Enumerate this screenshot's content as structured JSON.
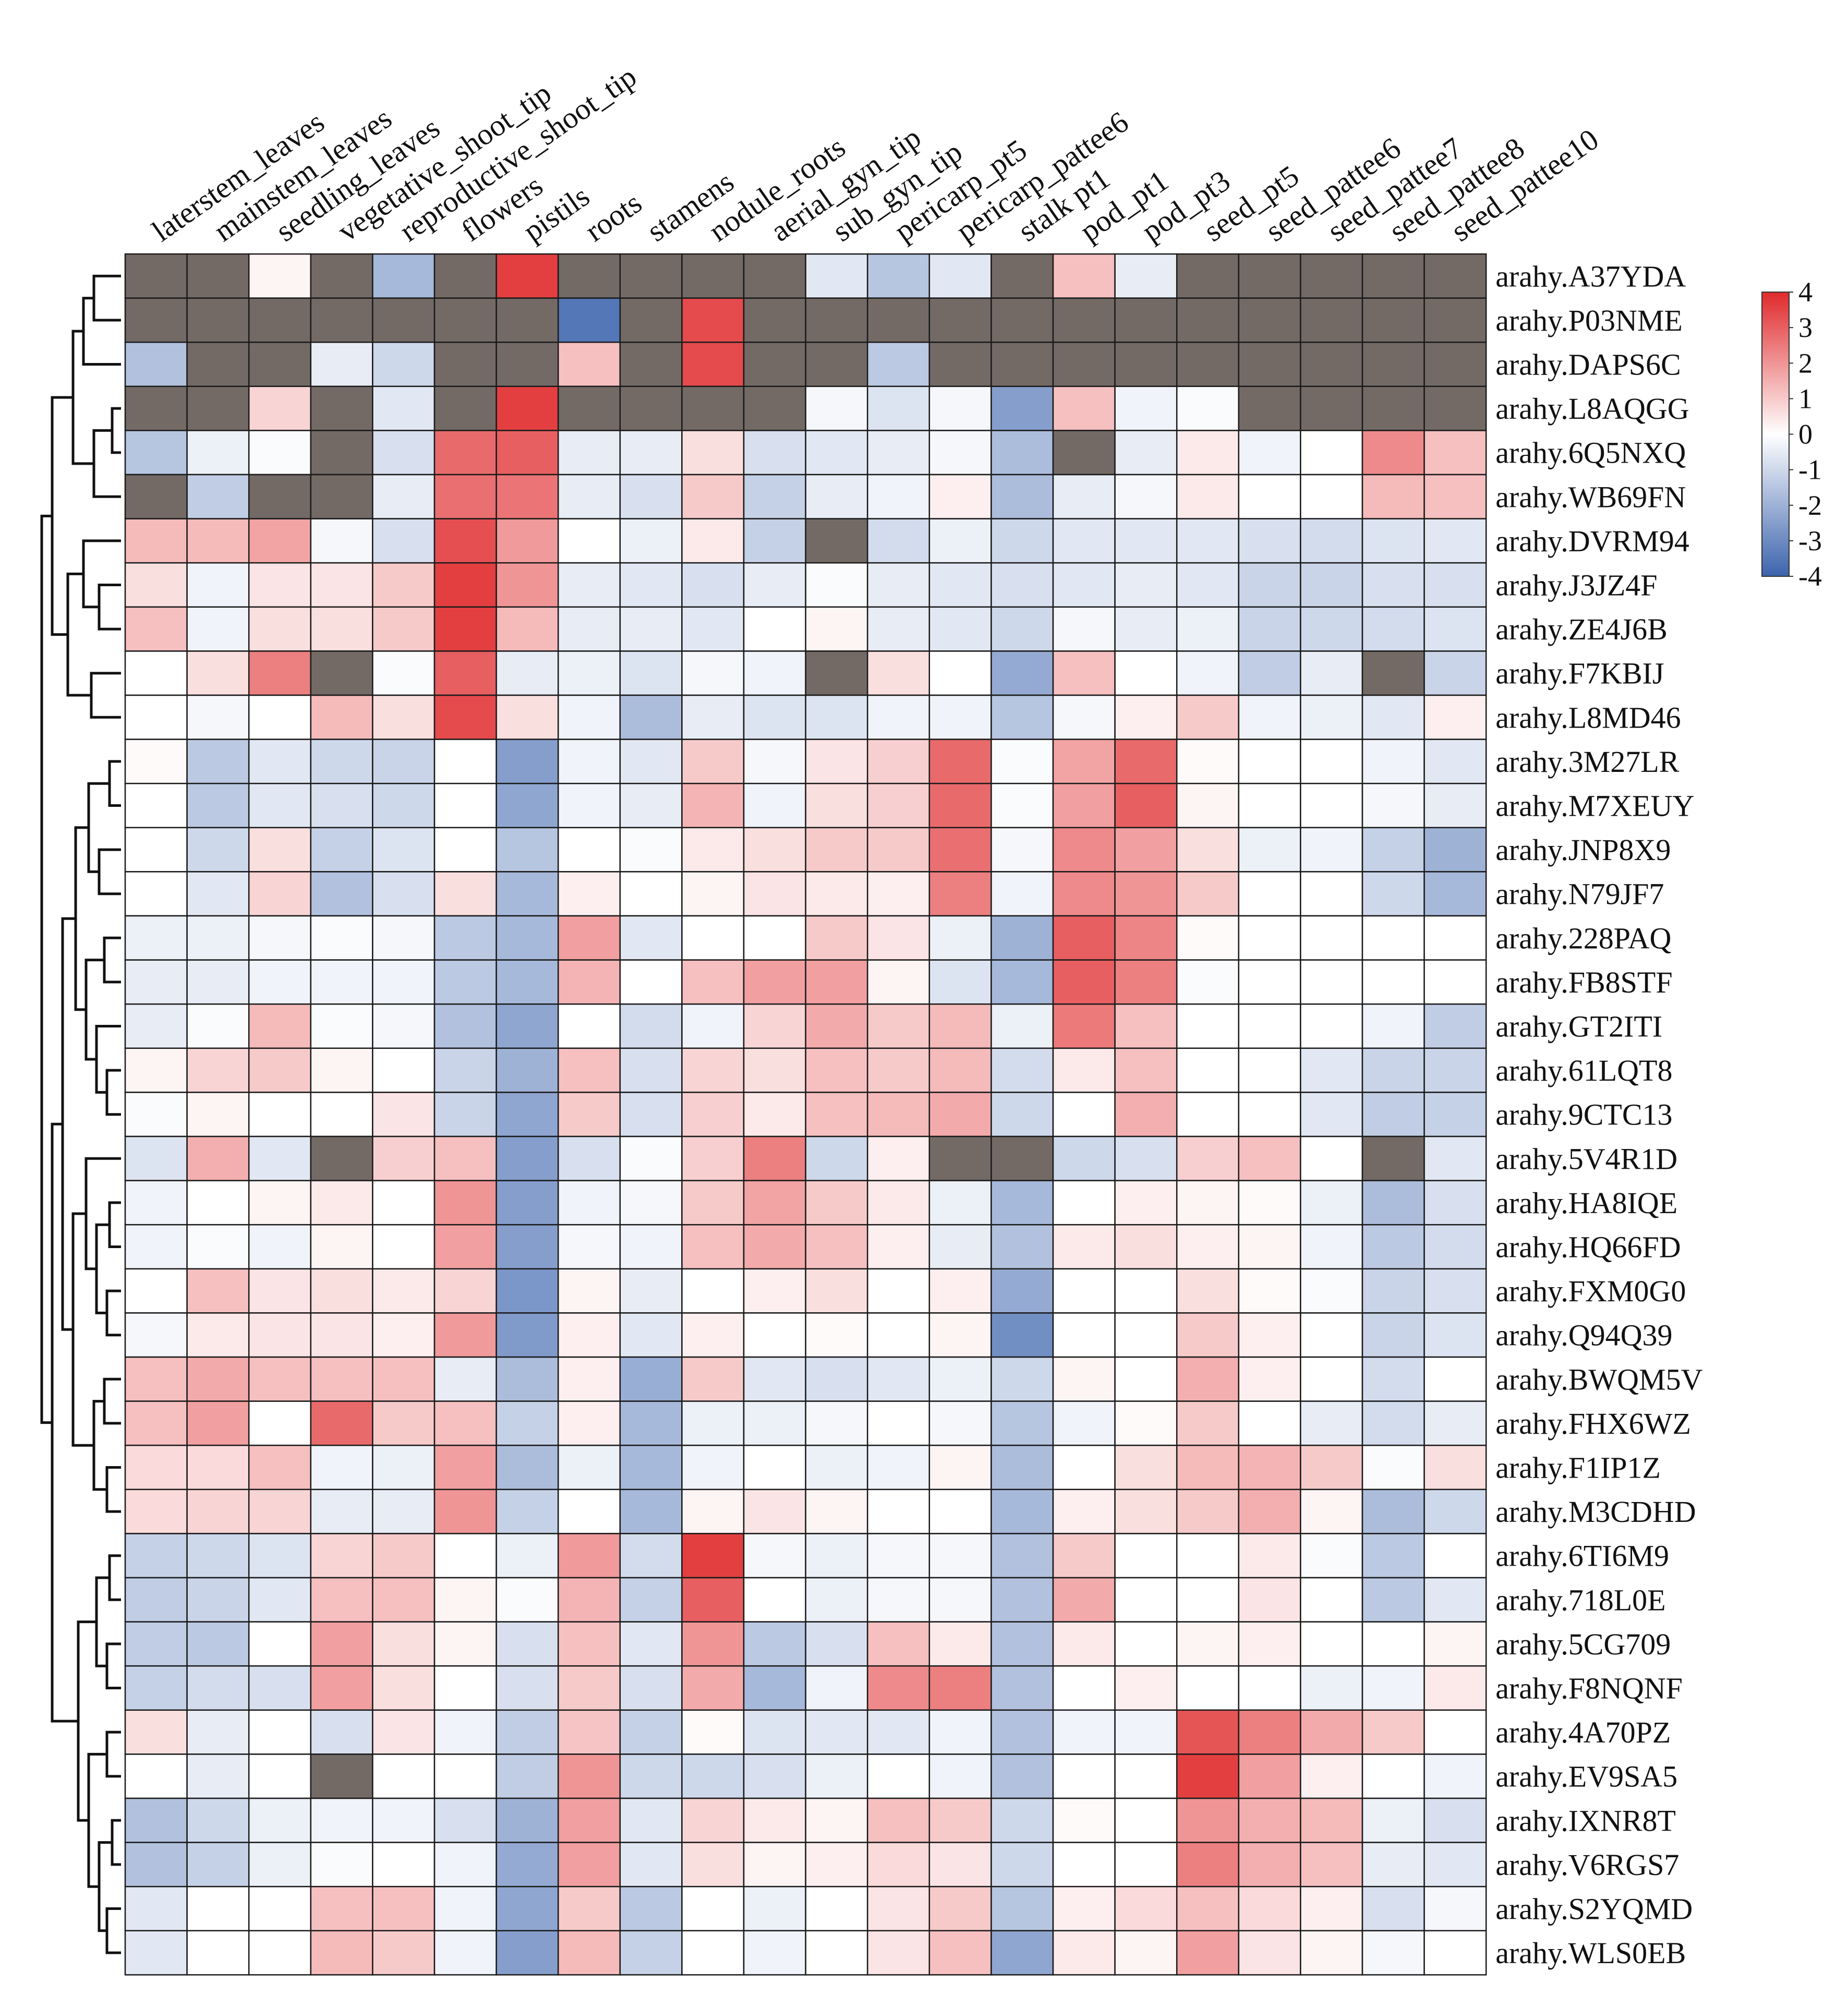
{
  "chart_data": {
    "type": "heatmap",
    "title": "",
    "columns": [
      "laterstem_leaves",
      "mainstem_leaves",
      "seedling_leaves",
      "vegetative_shoot_tip",
      "reproductive_shoot_tip",
      "flowers",
      "pistils",
      "roots",
      "stamens",
      "nodule_roots",
      "aerial_gyn_tip",
      "sub_gyn_tip",
      "pericarp_pt5",
      "pericarp_pattee6",
      "stalk pt1",
      "pod_pt1",
      "pod_pt3",
      "seed_pt5",
      "seed_pattee6",
      "seed_pattee7",
      "seed_pattee8",
      "seed_pattee10"
    ],
    "rows": [
      "arahy.A37YDA",
      "arahy.P03NME",
      "arahy.DAPS6C",
      "arahy.L8AQGG",
      "arahy.6Q5NXQ",
      "arahy.WB69FN",
      "arahy.DVRM94",
      "arahy.J3JZ4F",
      "arahy.ZE4J6B",
      "arahy.F7KBIJ",
      "arahy.L8MD46",
      "arahy.3M27LR",
      "arahy.M7XEUY",
      "arahy.JNP8X9",
      "arahy.N79JF7",
      "arahy.228PAQ",
      "arahy.FB8STF",
      "arahy.GT2ITI",
      "arahy.61LQT8",
      "arahy.9CTC13",
      "arahy.5V4R1D",
      "arahy.HA8IQE",
      "arahy.HQ66FD",
      "arahy.FXM0G0",
      "arahy.Q94Q39",
      "arahy.BWQM5V",
      "arahy.FHX6WZ",
      "arahy.F1IP1Z",
      "arahy.M3CDHD",
      "arahy.6TI6M9",
      "arahy.718L0E",
      "arahy.5CG709",
      "arahy.F8NQNF",
      "arahy.4A70PZ",
      "arahy.EV9SA5",
      "arahy.IXNR8T",
      "arahy.V6RGS7",
      "arahy.S2YQMD",
      "arahy.WLS0EB"
    ],
    "values": [
      [
        null,
        null,
        0.2,
        null,
        -1.8,
        null,
        3.6,
        null,
        null,
        null,
        null,
        -0.6,
        -1.5,
        -0.6,
        null,
        1.2,
        -0.5,
        null,
        null,
        null,
        null,
        null
      ],
      [
        null,
        null,
        null,
        null,
        null,
        null,
        null,
        -3.5,
        null,
        3.4,
        null,
        null,
        null,
        null,
        null,
        null,
        null,
        null,
        null,
        null,
        null,
        null
      ],
      [
        -1.6,
        null,
        null,
        -0.5,
        -1.0,
        null,
        null,
        1.2,
        null,
        3.4,
        null,
        null,
        -1.4,
        null,
        null,
        null,
        null,
        null,
        null,
        null,
        null,
        null
      ],
      [
        null,
        null,
        0.8,
        null,
        -0.6,
        null,
        3.6,
        null,
        null,
        null,
        null,
        -0.2,
        -0.7,
        -0.2,
        -2.5,
        1.2,
        -0.3,
        -0.1,
        null,
        null,
        null,
        null
      ],
      [
        -1.5,
        -0.4,
        -0.1,
        null,
        -0.8,
        2.8,
        3.0,
        -0.5,
        -0.5,
        0.6,
        -0.8,
        -0.6,
        -0.5,
        -0.2,
        -1.7,
        null,
        -0.5,
        0.4,
        -0.3,
        0.0,
        2.2,
        1.2
      ],
      [
        null,
        -1.3,
        null,
        null,
        -0.5,
        2.7,
        2.6,
        -0.5,
        -0.8,
        1.0,
        -1.2,
        -0.5,
        -0.3,
        0.3,
        -1.7,
        -0.5,
        -0.2,
        0.4,
        0.0,
        0.0,
        1.3,
        1.2
      ],
      [
        1.3,
        1.3,
        1.7,
        -0.2,
        -0.8,
        3.3,
        1.9,
        0.0,
        -0.4,
        0.4,
        -1.2,
        null,
        -0.9,
        -0.4,
        -1.0,
        -0.6,
        -0.6,
        -0.6,
        -0.8,
        -0.9,
        -0.7,
        -0.6
      ],
      [
        0.6,
        -0.3,
        0.5,
        0.5,
        1.0,
        3.6,
        2.0,
        -0.5,
        -0.6,
        -0.8,
        -0.5,
        -0.1,
        -0.5,
        -0.6,
        -0.8,
        -0.6,
        -0.5,
        -0.6,
        -1.1,
        -1.1,
        -0.8,
        -0.8
      ],
      [
        1.2,
        -0.3,
        0.6,
        0.6,
        1.0,
        3.6,
        1.3,
        -0.5,
        -0.5,
        -0.6,
        0.0,
        0.2,
        -0.5,
        -0.6,
        -1.0,
        -0.2,
        -0.5,
        -0.4,
        -1.1,
        -1.0,
        -0.9,
        -0.7
      ],
      [
        0.0,
        0.6,
        2.4,
        null,
        -0.1,
        3.0,
        -0.5,
        -0.4,
        -0.7,
        -0.2,
        -0.3,
        null,
        0.6,
        0.0,
        -2.2,
        1.2,
        0.0,
        -0.3,
        -1.3,
        -0.5,
        null,
        -1.1
      ],
      [
        0.0,
        -0.2,
        0.0,
        1.3,
        0.6,
        3.4,
        0.6,
        -0.3,
        -1.7,
        -0.5,
        -0.7,
        -0.7,
        -0.3,
        -0.3,
        -1.5,
        -0.2,
        0.3,
        1.0,
        -0.3,
        -0.4,
        -0.6,
        0.3
      ],
      [
        0.1,
        -1.4,
        -0.6,
        -1.0,
        -1.1,
        0.0,
        -2.5,
        -0.3,
        -0.6,
        1.0,
        -0.2,
        0.5,
        0.9,
        2.8,
        -0.1,
        1.7,
        2.8,
        0.1,
        0.0,
        0.0,
        -0.3,
        -0.6
      ],
      [
        0.0,
        -1.4,
        -0.6,
        -0.8,
        -1.0,
        0.0,
        -2.3,
        -0.3,
        -0.5,
        1.4,
        -0.3,
        0.6,
        0.9,
        2.8,
        -0.1,
        1.8,
        3.0,
        0.2,
        0.0,
        0.0,
        -0.2,
        -0.5
      ],
      [
        0.0,
        -1.0,
        0.6,
        -1.2,
        -0.7,
        0.0,
        -1.5,
        0.0,
        -0.1,
        0.4,
        0.6,
        1.0,
        1.0,
        2.7,
        -0.2,
        2.2,
        1.8,
        0.6,
        -0.4,
        -0.3,
        -1.2,
        -2.0
      ],
      [
        0.0,
        -0.6,
        0.8,
        -1.6,
        -0.8,
        0.6,
        -1.8,
        0.3,
        0.0,
        0.2,
        0.5,
        0.4,
        0.3,
        2.4,
        -0.3,
        2.2,
        2.0,
        1.0,
        0.0,
        0.0,
        -1.0,
        -1.8
      ],
      [
        -0.4,
        -0.4,
        -0.2,
        -0.1,
        -0.2,
        -1.4,
        -1.8,
        1.8,
        -0.6,
        0.0,
        0.0,
        1.0,
        0.5,
        -0.4,
        -2.0,
        3.0,
        2.3,
        0.1,
        0.0,
        0.0,
        0.0,
        0.0
      ],
      [
        -0.5,
        -0.5,
        -0.3,
        -0.3,
        -0.3,
        -1.4,
        -1.8,
        1.4,
        0.0,
        1.2,
        1.8,
        1.8,
        0.2,
        -0.7,
        -1.8,
        3.0,
        2.4,
        -0.1,
        0.0,
        0.0,
        0.0,
        0.0
      ],
      [
        -0.5,
        -0.1,
        1.3,
        -0.1,
        -0.2,
        -1.6,
        -2.3,
        0.0,
        -0.9,
        -0.3,
        0.8,
        1.6,
        1.0,
        1.3,
        -0.4,
        2.5,
        1.2,
        0.0,
        0.0,
        0.0,
        -0.3,
        -1.3
      ],
      [
        0.2,
        0.8,
        1.0,
        0.2,
        0.0,
        -1.1,
        -2.0,
        1.2,
        -0.8,
        0.8,
        0.6,
        1.2,
        1.0,
        1.3,
        -0.9,
        0.4,
        1.2,
        0.0,
        0.0,
        -0.6,
        -1.1,
        -1.1
      ],
      [
        -0.1,
        0.2,
        0.0,
        0.0,
        0.5,
        -1.1,
        -2.3,
        1.0,
        -0.8,
        0.9,
        0.4,
        1.2,
        1.3,
        1.6,
        -1.0,
        0.0,
        1.5,
        0.0,
        0.0,
        -0.6,
        -1.3,
        -1.2
      ],
      [
        -0.7,
        1.5,
        -0.6,
        null,
        0.9,
        1.2,
        -2.5,
        -0.8,
        -0.1,
        0.9,
        2.4,
        -1.0,
        0.3,
        null,
        null,
        -1.0,
        -0.8,
        0.9,
        1.2,
        0.0,
        null,
        -0.6
      ],
      [
        -0.3,
        0.0,
        0.2,
        0.4,
        0.0,
        2.0,
        -2.5,
        -0.3,
        -0.2,
        1.0,
        1.7,
        1.0,
        0.4,
        -0.4,
        -1.8,
        0.0,
        0.3,
        0.2,
        0.1,
        -0.4,
        -1.7,
        -0.8
      ],
      [
        -0.3,
        -0.1,
        -0.3,
        0.2,
        0.0,
        1.8,
        -2.5,
        -0.2,
        -0.3,
        1.2,
        1.6,
        1.2,
        0.3,
        -0.5,
        -1.6,
        0.4,
        0.6,
        0.3,
        0.2,
        -0.3,
        -1.4,
        -0.9
      ],
      [
        0.0,
        1.2,
        0.5,
        0.6,
        0.4,
        0.8,
        -2.7,
        0.2,
        -0.5,
        0.0,
        0.3,
        0.6,
        0.0,
        0.3,
        -2.2,
        0.0,
        0.0,
        0.6,
        0.1,
        -0.1,
        -1.1,
        -0.8
      ],
      [
        -0.2,
        0.4,
        0.5,
        0.5,
        0.3,
        1.9,
        -2.6,
        0.3,
        -0.6,
        0.3,
        0.0,
        0.1,
        0.0,
        0.2,
        -2.9,
        0.0,
        0.0,
        1.0,
        0.3,
        0.0,
        -1.1,
        -0.7
      ],
      [
        1.2,
        1.6,
        1.2,
        1.2,
        1.2,
        -0.5,
        -1.7,
        0.3,
        -2.1,
        1.0,
        -0.6,
        -0.8,
        -0.6,
        -0.4,
        -1.0,
        0.2,
        0.0,
        1.5,
        0.3,
        0.0,
        -0.9,
        0.0
      ],
      [
        1.2,
        1.8,
        0.0,
        2.8,
        1.0,
        1.2,
        -1.2,
        0.3,
        -1.8,
        -0.4,
        -0.4,
        -0.2,
        0.0,
        -0.2,
        -1.5,
        -0.3,
        0.1,
        1.0,
        0.0,
        -0.5,
        -0.9,
        -0.5
      ],
      [
        0.7,
        0.7,
        1.2,
        -0.3,
        -0.4,
        1.8,
        -1.7,
        -0.4,
        -1.8,
        -0.3,
        0.0,
        -0.4,
        -0.3,
        0.2,
        -1.7,
        0.0,
        0.6,
        1.3,
        1.4,
        1.0,
        -0.1,
        0.6
      ],
      [
        0.7,
        0.8,
        0.8,
        -0.5,
        -0.5,
        2.0,
        -1.2,
        0.0,
        -1.8,
        0.2,
        0.5,
        0.2,
        0.0,
        0.0,
        -1.8,
        0.3,
        0.6,
        1.0,
        1.5,
        0.2,
        -1.7,
        -1.0
      ],
      [
        -1.2,
        -1.0,
        -0.7,
        0.8,
        1.0,
        0.0,
        -0.4,
        1.9,
        -0.9,
        3.6,
        -0.2,
        -0.4,
        -0.2,
        -0.2,
        -1.6,
        1.0,
        0.0,
        0.0,
        0.4,
        -0.1,
        -1.4,
        0.0
      ],
      [
        -1.3,
        -1.1,
        -0.6,
        1.2,
        1.2,
        0.2,
        -0.1,
        1.4,
        -1.2,
        3.0,
        0.0,
        -0.4,
        -0.2,
        -0.2,
        -1.6,
        1.6,
        0.0,
        0.0,
        0.5,
        0.0,
        -1.4,
        -0.6
      ],
      [
        -1.3,
        -1.4,
        0.0,
        1.8,
        0.6,
        0.2,
        -0.8,
        1.2,
        -0.6,
        2.0,
        -1.4,
        -0.8,
        1.2,
        0.4,
        -1.6,
        0.4,
        0.0,
        0.2,
        0.3,
        0.0,
        0.0,
        0.2
      ],
      [
        -1.2,
        -0.9,
        -0.8,
        1.8,
        0.6,
        0.0,
        -0.8,
        1.0,
        -0.8,
        1.6,
        -1.8,
        -0.3,
        2.2,
        2.4,
        -1.6,
        0.0,
        0.3,
        0.0,
        0.0,
        -0.4,
        -0.3,
        0.4
      ],
      [
        0.6,
        -0.5,
        0.0,
        -0.8,
        0.5,
        -0.3,
        -1.3,
        1.1,
        -1.2,
        0.1,
        -0.7,
        -0.6,
        -0.6,
        -0.3,
        -1.6,
        -0.3,
        -0.3,
        3.2,
        2.4,
        1.6,
        1.0,
        0.0
      ],
      [
        0.0,
        -0.5,
        0.0,
        null,
        0.0,
        0.0,
        -1.3,
        2.0,
        -1.0,
        -1.0,
        -0.8,
        -0.4,
        0.0,
        -0.3,
        -1.6,
        0.0,
        0.0,
        3.6,
        1.8,
        0.3,
        0.0,
        -0.3
      ],
      [
        -1.6,
        -1.0,
        -0.4,
        -0.3,
        -0.3,
        -0.8,
        -2.0,
        1.8,
        -0.6,
        0.8,
        0.4,
        0.2,
        1.2,
        1.0,
        -1.0,
        0.1,
        0.0,
        2.0,
        1.5,
        1.3,
        -0.4,
        -0.8
      ],
      [
        -1.6,
        -1.2,
        -0.4,
        -0.1,
        0.0,
        -0.3,
        -2.2,
        1.8,
        -0.6,
        0.6,
        0.2,
        0.3,
        0.7,
        0.5,
        -1.0,
        0.0,
        0.0,
        2.4,
        1.5,
        1.2,
        -0.5,
        -0.6
      ],
      [
        -0.6,
        0.0,
        0.0,
        1.2,
        1.2,
        -0.3,
        -2.3,
        1.0,
        -1.4,
        0.0,
        -0.4,
        0.0,
        0.5,
        1.0,
        -1.5,
        0.3,
        0.7,
        1.2,
        0.7,
        0.3,
        -0.8,
        -0.2
      ],
      [
        -0.6,
        0.0,
        0.0,
        1.3,
        1.0,
        -0.3,
        -2.5,
        1.3,
        -1.2,
        0.0,
        -0.3,
        0.0,
        0.5,
        1.2,
        -2.3,
        0.4,
        0.2,
        1.8,
        0.5,
        0.2,
        -0.2,
        0.0
      ]
    ],
    "missing_color": "#736a66",
    "colorscale": {
      "low": "#3c64ad",
      "mid": "#ffffff",
      "high": "#e02a2c",
      "min": -4,
      "max": 4
    },
    "legend": {
      "placement": "top-right",
      "ticks": [
        "4",
        "3",
        "2",
        "1",
        "0",
        "-1",
        "-2",
        "-3",
        "-4"
      ]
    },
    "row_dendrogram": true
  }
}
